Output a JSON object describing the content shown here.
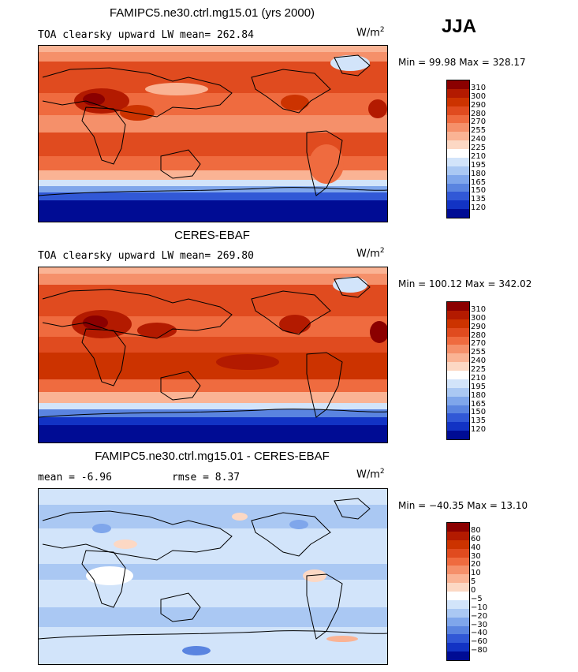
{
  "season": "JJA",
  "chart_data": [
    {
      "type": "heatmap",
      "title": "FAMIPC5.ne30.ctrl.mg15.01 (yrs 2000)",
      "variable": "TOA clearsky upward LW",
      "mean_label": "mean=",
      "mean": "262.84",
      "units_base": "W/m",
      "units_exp": "2",
      "min_label": "Min =",
      "min": "99.98",
      "max_label": "Max =",
      "max": "328.17",
      "levels": [
        "310",
        "300",
        "290",
        "280",
        "270",
        "255",
        "240",
        "225",
        "210",
        "195",
        "180",
        "165",
        "150",
        "135",
        "120"
      ],
      "colors": [
        "#8b0000",
        "#b31a00",
        "#cc3300",
        "#e04b1f",
        "#ef6b3f",
        "#f5906a",
        "#fab394",
        "#fcd8c4",
        "#ffffff",
        "#d2e4fa",
        "#aac8f3",
        "#7fa6eb",
        "#5a84e0",
        "#3158d6",
        "#1233c4",
        "#000c94"
      ]
    },
    {
      "type": "heatmap",
      "title": "CERES-EBAF",
      "variable": "TOA clearsky upward LW",
      "mean_label": "mean=",
      "mean": "269.80",
      "units_base": "W/m",
      "units_exp": "2",
      "min_label": "Min =",
      "min": "100.12",
      "max_label": "Max =",
      "max": "342.02",
      "levels": [
        "310",
        "300",
        "290",
        "280",
        "270",
        "255",
        "240",
        "225",
        "210",
        "195",
        "180",
        "165",
        "150",
        "135",
        "120"
      ],
      "colors": [
        "#8b0000",
        "#b31a00",
        "#cc3300",
        "#e04b1f",
        "#ef6b3f",
        "#f5906a",
        "#fab394",
        "#fcd8c4",
        "#ffffff",
        "#d2e4fa",
        "#aac8f3",
        "#7fa6eb",
        "#5a84e0",
        "#3158d6",
        "#1233c4",
        "#000c94"
      ]
    },
    {
      "type": "heatmap",
      "title": "FAMIPC5.ne30.ctrl.mg15.01 - CERES-EBAF",
      "mean_label": "mean =",
      "mean": "-6.96",
      "rmse_label": "rmse =",
      "rmse": "8.37",
      "units_base": "W/m",
      "units_exp": "2",
      "min_label": "Min =",
      "min": "−40.35",
      "max_label": "Max =",
      "max": "13.10",
      "levels": [
        "80",
        "60",
        "40",
        "30",
        "20",
        "10",
        "5",
        "0",
        "−5",
        "−10",
        "−20",
        "−30",
        "−40",
        "−60",
        "−80"
      ],
      "colors": [
        "#8b0000",
        "#b31a00",
        "#cc3300",
        "#e04b1f",
        "#ef6b3f",
        "#f5906a",
        "#fab394",
        "#fcd8c4",
        "#ffffff",
        "#d2e4fa",
        "#aac8f3",
        "#7fa6eb",
        "#5a84e0",
        "#3158d6",
        "#1233c4",
        "#000c94"
      ]
    }
  ]
}
